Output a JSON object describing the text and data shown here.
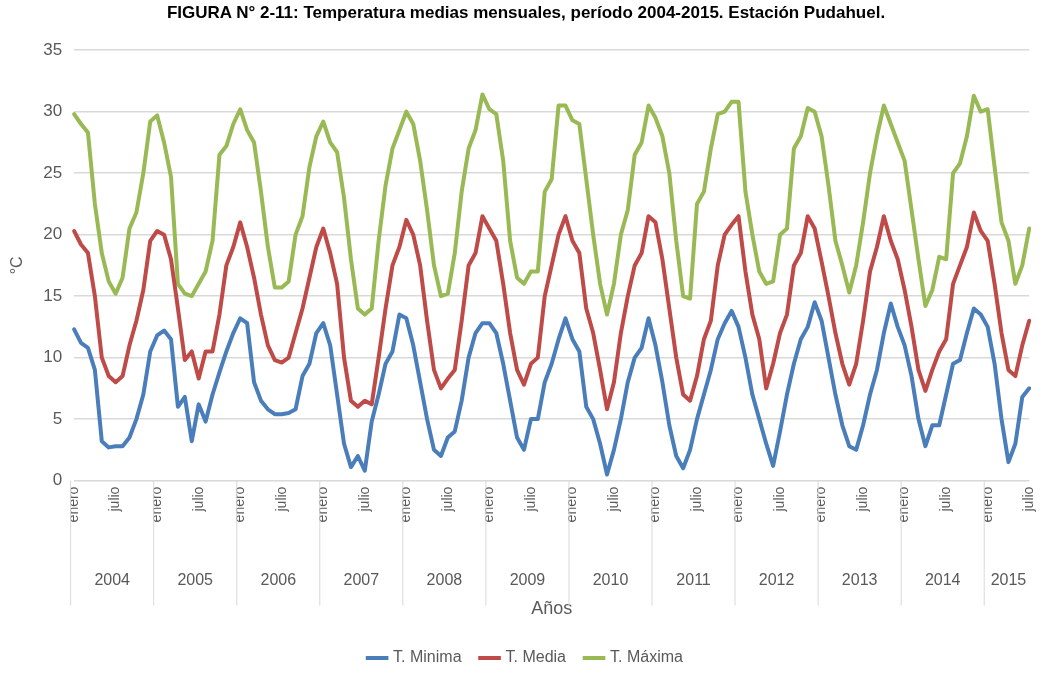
{
  "chart_data": {
    "type": "line",
    "title": "FIGURA N° 2-11: Temperatura medias mensuales, período 2004-2015. Estación Pudahuel.",
    "xlabel": "Años",
    "ylabel": "°C",
    "categories": [
      "enero",
      null,
      null,
      null,
      null,
      null,
      "julio",
      null,
      null,
      null,
      null,
      null,
      "enero",
      null,
      null,
      null,
      null,
      null,
      "julio",
      null,
      null,
      null,
      null,
      null,
      "enero",
      null,
      null,
      null,
      null,
      null,
      "julio",
      null,
      null,
      null,
      null,
      null,
      "enero",
      null,
      null,
      null,
      null,
      null,
      "julio",
      null,
      null,
      null,
      null,
      null,
      "enero",
      null,
      null,
      null,
      null,
      null,
      "julio",
      null,
      null,
      null,
      null,
      null,
      "enero",
      null,
      null,
      null,
      null,
      null,
      "julio",
      null,
      null,
      null,
      null,
      null,
      "enero",
      null,
      null,
      null,
      null,
      null,
      "julio",
      null,
      null,
      null,
      null,
      null,
      "enero",
      null,
      null,
      null,
      null,
      null,
      "julio",
      null,
      null,
      null,
      null,
      null,
      "enero",
      null,
      null,
      null,
      null,
      null,
      "julio",
      null,
      null,
      null,
      null,
      null,
      "enero",
      null,
      null,
      null,
      null,
      null,
      "julio",
      null,
      null,
      null,
      null,
      null,
      "enero",
      null,
      null,
      null,
      null,
      null,
      "julio",
      null,
      null,
      null,
      null,
      null,
      "enero",
      null,
      null,
      null,
      null,
      null,
      "julio"
    ],
    "annotations": [
      "2004",
      "2005",
      "2006",
      "2007",
      "2008",
      "2009",
      "2010",
      "2011",
      "2012",
      "2013",
      "2014",
      "2015"
    ],
    "series": [
      {
        "name": "T. Minima",
        "color": "#4a7ebb",
        "values": [
          12.3,
          11.2,
          10.8,
          9.0,
          3.2,
          2.7,
          2.8,
          2.8,
          3.5,
          5.0,
          7.0,
          10.5,
          11.8,
          12.2,
          11.5,
          6.0,
          6.8,
          3.2,
          6.2,
          4.8,
          7.0,
          8.8,
          10.5,
          12.0,
          13.2,
          12.8,
          8.0,
          6.5,
          5.8,
          5.4,
          5.4,
          5.5,
          5.8,
          8.5,
          9.5,
          12.0,
          12.8,
          11.0,
          7.0,
          3.0,
          1.1,
          2.0,
          0.8,
          4.8,
          7.0,
          9.5,
          10.5,
          13.5,
          13.2,
          11.0,
          8.0,
          5.0,
          2.5,
          2.0,
          3.5,
          4.0,
          6.5,
          10.0,
          12.0,
          12.8,
          12.8,
          12.0,
          9.5,
          6.5,
          3.5,
          2.5,
          5.0,
          5.0,
          8.0,
          9.5,
          11.5,
          13.2,
          11.5,
          10.5,
          6.0,
          5.0,
          3.0,
          0.5,
          2.5,
          5.0,
          8.0,
          10.0,
          10.8,
          13.2,
          11.0,
          8.0,
          4.5,
          2.0,
          1.0,
          2.5,
          5.0,
          7.0,
          9.0,
          11.5,
          12.8,
          13.8,
          12.5,
          10.0,
          7.0,
          5.0,
          3.0,
          1.2,
          4.0,
          7.0,
          9.5,
          11.5,
          12.5,
          14.5,
          13.0,
          10.0,
          7.0,
          4.5,
          2.8,
          2.5,
          4.5,
          7.0,
          9.0,
          12.0,
          14.4,
          12.5,
          11.0,
          8.5,
          5.0,
          2.8,
          4.5,
          4.5,
          7.0,
          9.5,
          9.8,
          12.0,
          14.0,
          13.5,
          12.5,
          9.5,
          5.0,
          1.5,
          3.0,
          6.8,
          7.5
        ]
      },
      {
        "name": "T. Media",
        "color": "#be4b48",
        "values": [
          20.3,
          19.2,
          18.5,
          15.0,
          10.0,
          8.5,
          8.0,
          8.5,
          11.0,
          13.0,
          15.5,
          19.5,
          20.3,
          20.0,
          18.0,
          14.0,
          9.8,
          10.5,
          8.3,
          10.5,
          10.5,
          13.5,
          17.5,
          19.0,
          21.0,
          19.0,
          16.5,
          13.5,
          11.0,
          9.8,
          9.6,
          10.0,
          12.0,
          14.0,
          16.5,
          19.0,
          20.5,
          18.5,
          16.0,
          10.0,
          6.5,
          6.0,
          6.5,
          6.2,
          10.0,
          14.0,
          17.5,
          19.0,
          21.2,
          20.0,
          17.5,
          13.0,
          9.0,
          7.5,
          8.3,
          9.0,
          13.0,
          17.5,
          18.5,
          21.5,
          20.5,
          19.5,
          16.0,
          12.0,
          9.0,
          7.8,
          9.5,
          10.0,
          15.0,
          17.5,
          20.0,
          21.5,
          19.5,
          18.5,
          14.0,
          12.0,
          9.0,
          5.8,
          8.0,
          12.0,
          15.0,
          17.5,
          18.5,
          21.5,
          21.0,
          18.0,
          14.0,
          10.0,
          7.0,
          6.5,
          8.5,
          11.5,
          13.0,
          17.5,
          20.0,
          20.8,
          21.5,
          17.0,
          13.5,
          11.5,
          7.5,
          9.5,
          12.0,
          13.5,
          17.5,
          18.5,
          21.5,
          20.5,
          17.8,
          15.0,
          12.0,
          9.5,
          7.8,
          9.5,
          13.0,
          17.0,
          19.0,
          21.5,
          19.5,
          18.0,
          15.5,
          12.5,
          9.0,
          7.3,
          9.0,
          10.5,
          11.5,
          16.0,
          17.5,
          19.0,
          21.8,
          20.3,
          19.5,
          16.0,
          12.0,
          9.0,
          8.5,
          11.0,
          13.0
        ]
      },
      {
        "name": "T. Máxima",
        "color": "#98b954",
        "values": [
          29.8,
          29.0,
          28.3,
          22.5,
          18.5,
          16.2,
          15.2,
          16.5,
          20.5,
          21.8,
          25.0,
          29.2,
          29.7,
          27.5,
          24.7,
          16.0,
          15.2,
          15.0,
          16.0,
          17.0,
          19.5,
          26.5,
          27.2,
          29.0,
          30.2,
          28.5,
          27.5,
          23.5,
          19.0,
          15.7,
          15.7,
          16.2,
          20.0,
          21.5,
          25.5,
          28.0,
          29.2,
          27.5,
          26.7,
          23.0,
          18.0,
          14.0,
          13.5,
          14.0,
          19.5,
          24.0,
          27.0,
          28.5,
          30.0,
          29.0,
          26.0,
          22.0,
          17.5,
          15.0,
          15.2,
          18.5,
          23.5,
          27.0,
          28.5,
          31.4,
          30.2,
          29.8,
          26.0,
          19.5,
          16.5,
          16.0,
          17.0,
          17.0,
          23.5,
          24.5,
          30.5,
          30.5,
          29.3,
          29.0,
          24.5,
          20.0,
          16.0,
          13.5,
          16.0,
          20.0,
          22.0,
          26.5,
          27.5,
          30.5,
          29.5,
          28.0,
          25.0,
          19.5,
          15.0,
          14.8,
          22.5,
          23.5,
          27.0,
          29.8,
          30.0,
          30.8,
          30.8,
          23.5,
          20.0,
          17.0,
          16.0,
          16.2,
          20.0,
          20.5,
          27.0,
          28.0,
          30.3,
          30.0,
          28.0,
          24.0,
          19.5,
          17.5,
          15.3,
          17.5,
          21.0,
          25.0,
          28.0,
          30.5,
          29.0,
          27.5,
          26.0,
          22.0,
          18.0,
          14.2,
          15.5,
          18.2,
          18.0,
          25.0,
          25.8,
          28.0,
          31.3,
          30.0,
          30.2,
          25.5,
          21.0,
          19.5,
          16.0,
          17.5,
          20.5
        ]
      }
    ],
    "ylim": [
      0,
      35
    ],
    "yticks": [
      0,
      5,
      10,
      15,
      20,
      25,
      30,
      35
    ],
    "grid": "y",
    "legend": "bottom",
    "marker": "none",
    "line_style": "solid"
  }
}
